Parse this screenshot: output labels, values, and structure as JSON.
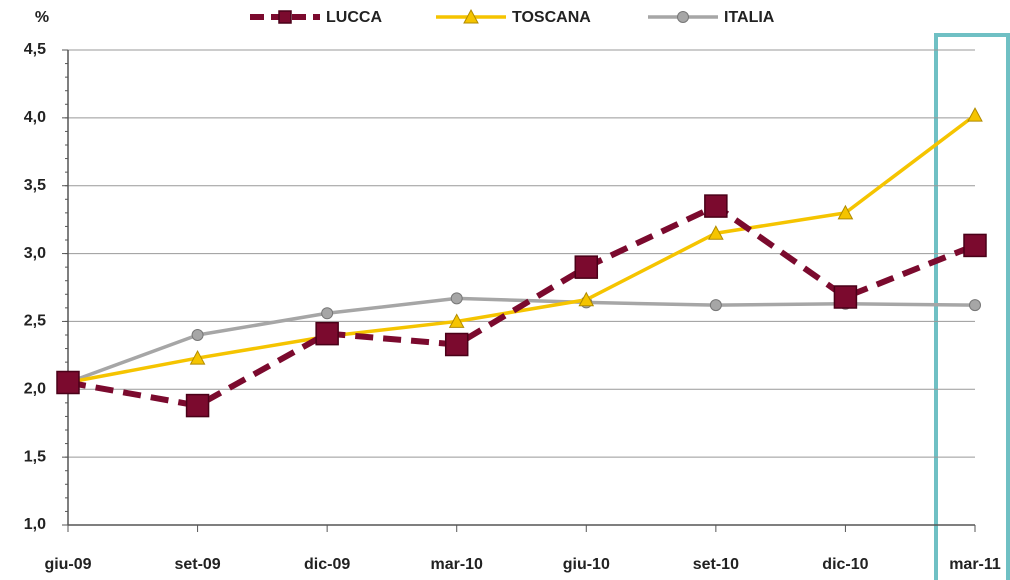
{
  "chart_data": {
    "type": "line",
    "y_label": "%",
    "categories": [
      "giu-09",
      "set-09",
      "dic-09",
      "mar-10",
      "giu-10",
      "set-10",
      "dic-10",
      "mar-11"
    ],
    "series": [
      {
        "name": "LUCCA",
        "color": "#7b0a2e",
        "values": [
          2.05,
          1.88,
          2.41,
          2.33,
          2.9,
          3.35,
          2.68,
          3.06
        ]
      },
      {
        "name": "TOSCANA",
        "color": "#f5c400",
        "values": [
          2.05,
          2.23,
          2.39,
          2.5,
          2.66,
          3.15,
          3.3,
          4.02
        ]
      },
      {
        "name": "ITALIA",
        "color": "#a6a6a6",
        "values": [
          2.05,
          2.4,
          2.56,
          2.67,
          2.64,
          2.62,
          2.63,
          2.62
        ]
      }
    ],
    "ylim": [
      1.0,
      4.5
    ],
    "yticks": [
      {
        "value": 1.0,
        "label": "1,0"
      },
      {
        "value": 1.5,
        "label": "1,5"
      },
      {
        "value": 2.0,
        "label": "2,0"
      },
      {
        "value": 2.5,
        "label": "2,5"
      },
      {
        "value": 3.0,
        "label": "3,0"
      },
      {
        "value": 3.5,
        "label": "3,5"
      },
      {
        "value": 4.0,
        "label": "4,0"
      },
      {
        "value": 4.5,
        "label": "4,5"
      }
    ],
    "grid": true,
    "legend": "top"
  }
}
